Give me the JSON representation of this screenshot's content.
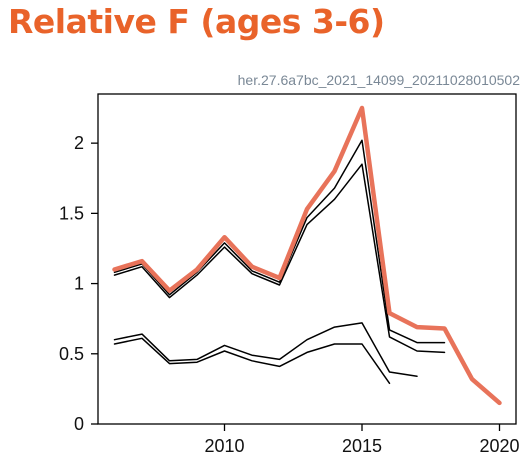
{
  "title": "Relative F (ages 3-6)",
  "subtitle": "her.27.6a7bc_2021_14099_20211028010502",
  "chart_data": {
    "type": "line",
    "title": "Relative F (ages 3-6)",
    "xlabel": "",
    "ylabel": "",
    "xlim": [
      2005.4,
      2020.6
    ],
    "ylim": [
      0,
      2.35
    ],
    "x_ticks": [
      2010,
      2015,
      2020
    ],
    "y_ticks": [
      0,
      0.5,
      1,
      1.5,
      2
    ],
    "x_tick_labels": [
      "2010",
      "2015",
      "2020"
    ],
    "y_tick_labels": [
      "0",
      "0.5",
      "1",
      "1.5",
      "2"
    ],
    "grid": false,
    "series": [
      {
        "color": "#e8735a",
        "x": [
          2006,
          2007,
          2008,
          2009,
          2010,
          2011,
          2012,
          2013,
          2014,
          2015,
          2016,
          2017,
          2018,
          2019,
          2020
        ],
        "values": [
          1.1,
          1.16,
          0.95,
          1.1,
          1.33,
          1.12,
          1.04,
          1.53,
          1.8,
          2.25,
          0.79,
          0.69,
          0.68,
          0.32,
          0.15
        ]
      },
      {
        "color": "#000000",
        "x": [
          2006,
          2007,
          2008,
          2009,
          2010,
          2011,
          2012,
          2013,
          2014,
          2015,
          2016,
          2017,
          2018
        ],
        "values": [
          1.08,
          1.14,
          0.92,
          1.08,
          1.29,
          1.09,
          1.01,
          1.47,
          1.68,
          2.02,
          0.67,
          0.58,
          0.58
        ]
      },
      {
        "color": "#000000",
        "x": [
          2006,
          2007,
          2008,
          2009,
          2010,
          2011,
          2012,
          2013,
          2014,
          2015,
          2016,
          2017,
          2018
        ],
        "values": [
          1.06,
          1.12,
          0.9,
          1.06,
          1.26,
          1.07,
          0.99,
          1.42,
          1.6,
          1.85,
          0.62,
          0.52,
          0.51
        ]
      },
      {
        "color": "#000000",
        "x": [
          2006,
          2007,
          2008,
          2009,
          2010,
          2011,
          2012,
          2013,
          2014,
          2015,
          2016,
          2017
        ],
        "values": [
          0.6,
          0.64,
          0.45,
          0.46,
          0.56,
          0.49,
          0.46,
          0.6,
          0.69,
          0.72,
          0.37,
          0.34
        ]
      },
      {
        "color": "#000000",
        "x": [
          2006,
          2007,
          2008,
          2009,
          2010,
          2011,
          2012,
          2013,
          2014,
          2015,
          2016
        ],
        "values": [
          0.57,
          0.61,
          0.43,
          0.44,
          0.52,
          0.45,
          0.41,
          0.51,
          0.57,
          0.57,
          0.29
        ]
      }
    ]
  }
}
